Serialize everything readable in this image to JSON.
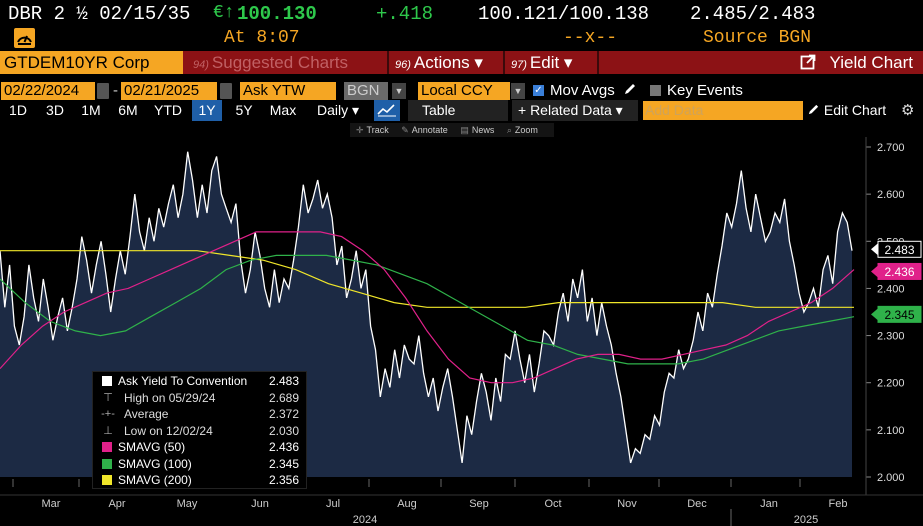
{
  "header": {
    "security": "DBR 2 ½ 02/15/35",
    "euro_arrow": "€↑",
    "price": "100.130",
    "change": "+.418",
    "bid_ask": "100.121/100.138",
    "yields": "2.485/2.483",
    "time": "At 8:07",
    "size": "--x--",
    "source": "Source BGN"
  },
  "menubar": {
    "ticker": "GTDEM10YR Corp",
    "suggested_num": "94)",
    "suggested": "Suggested Charts",
    "actions_num": "96)",
    "actions": "Actions ▾",
    "edit_num": "97)",
    "edit": "Edit ▾",
    "title": "Yield Chart"
  },
  "controls": {
    "start_date": "02/22/2024",
    "dash": "-",
    "end_date": "02/21/2025",
    "field": "Ask YTW",
    "source": "BGN",
    "currency": "Local CCY",
    "mov_avgs": "Mov Avgs",
    "key_events": "Key Events"
  },
  "periods": {
    "items": [
      "1D",
      "3D",
      "1M",
      "6M",
      "YTD",
      "1Y",
      "5Y",
      "Max"
    ],
    "active": "1Y",
    "frequency": "Daily ▾",
    "table": "Table",
    "related": "+ Related Data ▾",
    "add_data_placeholder": "Add Data",
    "edit_chart": "Edit Chart"
  },
  "tools": [
    "Track",
    "Annotate",
    "News",
    "Zoom"
  ],
  "colors": {
    "accent_orange": "#f5a623",
    "menubar_red": "#8c1215",
    "price_green": "#2ec84b",
    "smavg50": "#e0218a",
    "smavg100": "#2fb24a",
    "smavg200": "#f0e62a"
  },
  "chart_data": {
    "type": "area",
    "y_axis": {
      "min": 2.0,
      "max": 2.7,
      "ticks": [
        "2.700",
        "2.600",
        "2.500",
        "2.400",
        "2.300",
        "2.200",
        "2.100",
        "2.000"
      ],
      "side": "right"
    },
    "x_axis": {
      "months": [
        "Mar",
        "Apr",
        "May",
        "Jun",
        "Jul",
        "Aug",
        "Sep",
        "Oct",
        "Nov",
        "Dec",
        "Jan",
        "Feb"
      ],
      "years": [
        "2024",
        "2025"
      ]
    },
    "last_labels": [
      {
        "text": "2.483",
        "value": 2.483,
        "color": "#ffffff",
        "bg": "#000000",
        "fg": "#ffffff"
      },
      {
        "text": "2.436",
        "value": 2.436,
        "color": "#e0218a",
        "bg": "#e0218a",
        "fg": "#ffffff"
      },
      {
        "text": "2.345",
        "value": 2.345,
        "color": "#2fb24a",
        "bg": "#2fb24a",
        "fg": "#000000"
      }
    ],
    "series": [
      {
        "name": "Ask Yield To Convention",
        "color": "#ffffff",
        "fill": "#1c2a44",
        "values": [
          2.48,
          2.36,
          2.45,
          2.32,
          2.28,
          2.34,
          2.45,
          2.38,
          2.33,
          2.42,
          2.36,
          2.29,
          2.34,
          2.38,
          2.31,
          2.36,
          2.42,
          2.51,
          2.46,
          2.39,
          2.45,
          2.5,
          2.43,
          2.35,
          2.42,
          2.48,
          2.43,
          2.51,
          2.6,
          2.52,
          2.48,
          2.55,
          2.5,
          2.57,
          2.53,
          2.58,
          2.62,
          2.55,
          2.6,
          2.69,
          2.63,
          2.55,
          2.62,
          2.56,
          2.65,
          2.68,
          2.6,
          2.57,
          2.54,
          2.58,
          2.46,
          2.39,
          2.44,
          2.52,
          2.47,
          2.4,
          2.36,
          2.44,
          2.37,
          2.42,
          2.4,
          2.46,
          2.53,
          2.62,
          2.56,
          2.59,
          2.63,
          2.57,
          2.6,
          2.55,
          2.45,
          2.49,
          2.38,
          2.42,
          2.48,
          2.4,
          2.44,
          2.32,
          2.27,
          2.17,
          2.23,
          2.19,
          2.27,
          2.21,
          2.28,
          2.25,
          2.24,
          2.3,
          2.22,
          2.17,
          2.21,
          2.14,
          2.19,
          2.23,
          2.17,
          2.1,
          2.03,
          2.13,
          2.09,
          2.16,
          2.22,
          2.18,
          2.12,
          2.21,
          2.16,
          2.26,
          2.25,
          2.31,
          2.25,
          2.2,
          2.26,
          2.18,
          2.24,
          2.31,
          2.3,
          2.28,
          2.35,
          2.39,
          2.33,
          2.42,
          2.38,
          2.44,
          2.33,
          2.38,
          2.3,
          2.37,
          2.32,
          2.28,
          2.22,
          2.17,
          2.1,
          2.03,
          2.06,
          2.05,
          2.09,
          2.08,
          2.13,
          2.11,
          2.18,
          2.22,
          2.21,
          2.27,
          2.23,
          2.25,
          2.29,
          2.35,
          2.31,
          2.39,
          2.36,
          2.43,
          2.49,
          2.56,
          2.53,
          2.58,
          2.65,
          2.57,
          2.52,
          2.6,
          2.55,
          2.5,
          2.52,
          2.56,
          2.54,
          2.59,
          2.5,
          2.45,
          2.39,
          2.35,
          2.37,
          2.4,
          2.36,
          2.44,
          2.47,
          2.41,
          2.52,
          2.56,
          2.54,
          2.48
        ],
        "high": {
          "label": "High on 05/29/24",
          "value": 2.689
        },
        "average": {
          "label": "Average",
          "value": 2.372
        },
        "low": {
          "label": "Low on 12/02/24",
          "value": 2.03
        },
        "last": 2.483
      },
      {
        "name": "SMAVG (50)",
        "color": "#e0218a",
        "values": [
          2.23,
          2.28,
          2.32,
          2.35,
          2.37,
          2.39,
          2.4,
          2.42,
          2.44,
          2.46,
          2.48,
          2.5,
          2.52,
          2.52,
          2.52,
          2.52,
          2.51,
          2.48,
          2.44,
          2.38,
          2.31,
          2.25,
          2.21,
          2.2,
          2.2,
          2.21,
          2.23,
          2.25,
          2.26,
          2.26,
          2.25,
          2.25,
          2.26,
          2.27,
          2.28,
          2.3,
          2.33,
          2.35,
          2.37,
          2.4,
          2.44
        ],
        "last": 2.436
      },
      {
        "name": "SMAVG (100)",
        "color": "#2fb24a",
        "values": [
          2.42,
          2.37,
          2.33,
          2.31,
          2.3,
          2.31,
          2.34,
          2.37,
          2.4,
          2.44,
          2.46,
          2.47,
          2.47,
          2.47,
          2.46,
          2.45,
          2.43,
          2.41,
          2.38,
          2.35,
          2.32,
          2.29,
          2.28,
          2.26,
          2.25,
          2.24,
          2.24,
          2.24,
          2.25,
          2.27,
          2.29,
          2.31,
          2.32,
          2.33,
          2.34
        ],
        "last": 2.345
      },
      {
        "name": "SMAVG (200)",
        "color": "#f0e62a",
        "values": [
          2.48,
          2.48,
          2.48,
          2.48,
          2.48,
          2.48,
          2.48,
          2.47,
          2.46,
          2.44,
          2.41,
          2.39,
          2.37,
          2.36,
          2.36,
          2.36,
          2.36,
          2.37,
          2.37,
          2.37,
          2.37,
          2.37,
          2.37,
          2.36,
          2.36,
          2.36,
          2.36
        ],
        "last": 2.356
      }
    ]
  },
  "legend": {
    "main": {
      "label": "Ask Yield To Convention",
      "value": "2.483"
    },
    "high": {
      "label": "High on 05/29/24",
      "value": "2.689"
    },
    "average": {
      "label": "Average",
      "value": "2.372"
    },
    "low": {
      "label": "Low on 12/02/24",
      "value": "2.030"
    },
    "sma50": {
      "label": "SMAVG (50)",
      "value": "2.436"
    },
    "sma100": {
      "label": "SMAVG (100)",
      "value": "2.345"
    },
    "sma200": {
      "label": "SMAVG (200)",
      "value": "2.356"
    }
  }
}
